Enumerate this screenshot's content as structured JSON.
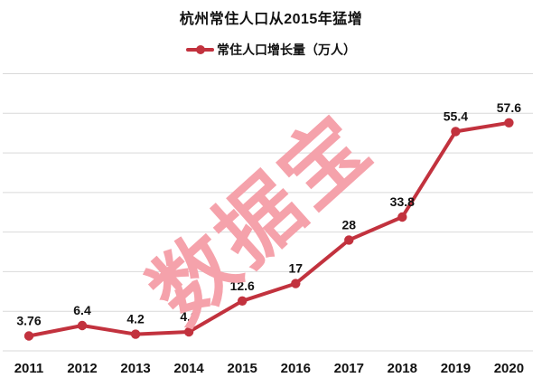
{
  "chart_data": {
    "type": "line",
    "title": "杭州常住人口从2015年猛增",
    "legend": "常住人口增长量（万人）",
    "legend_position": "top",
    "categories": [
      "2011",
      "2012",
      "2013",
      "2014",
      "2015",
      "2016",
      "2017",
      "2018",
      "2019",
      "2020"
    ],
    "series": [
      {
        "name": "常住人口增长量（万人）",
        "values": [
          3.76,
          6.4,
          4.2,
          4.8,
          12.6,
          17,
          28,
          33.8,
          55.4,
          57.6
        ]
      }
    ],
    "point_labels": [
      "3.76",
      "6.4",
      "4.2",
      "4.8",
      "12.6",
      "17",
      "28",
      "33.8",
      "55.4",
      "57.6"
    ],
    "xlabel": "",
    "ylabel": "",
    "ylim": [
      0,
      70
    ],
    "grid_step": 10,
    "grid": "horizontal",
    "y_axis_labels_visible": false,
    "colors": {
      "line": "#c2323e",
      "gridline": "#d9d9d9",
      "text": "#111111"
    }
  },
  "watermark": {
    "text": "数据宝",
    "color": "#f5a2ab"
  }
}
